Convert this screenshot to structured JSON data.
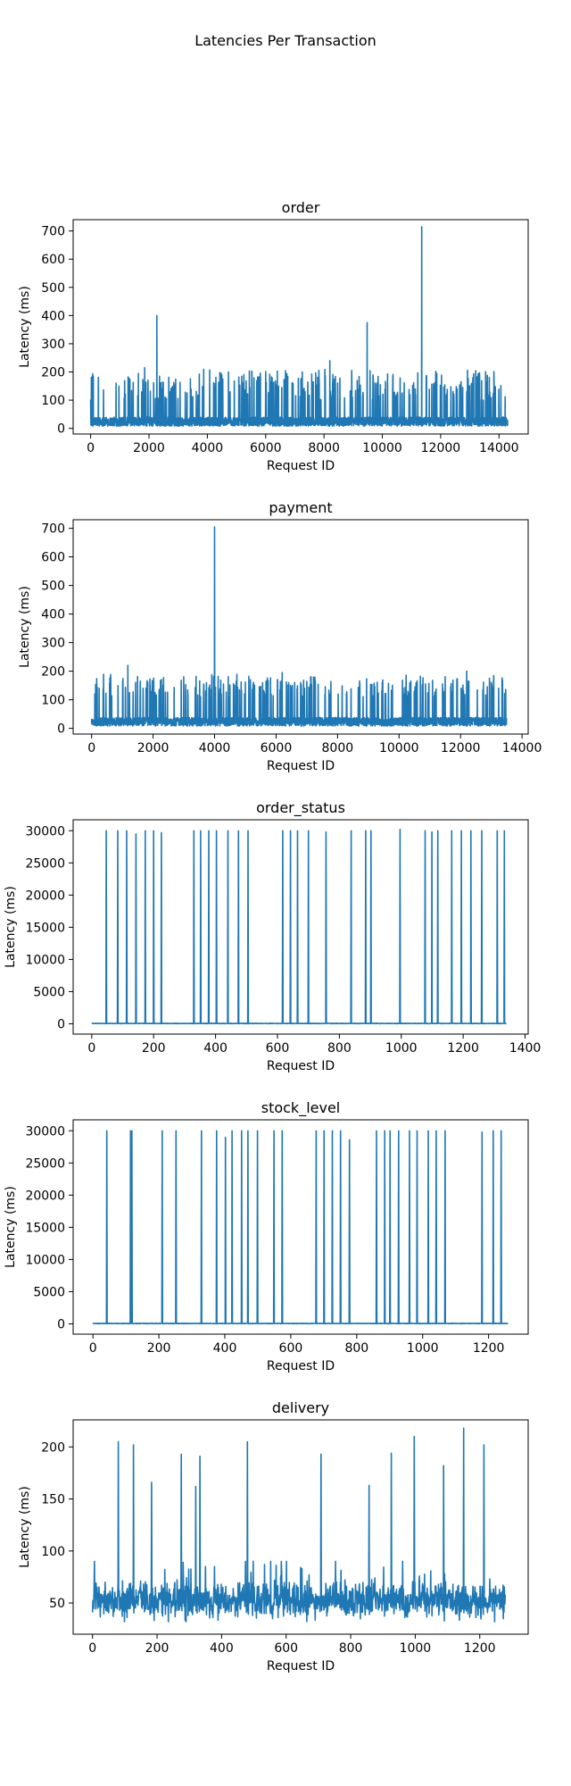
{
  "figure": {
    "suptitle": "Latencies Per Transaction"
  },
  "chart_data": [
    {
      "type": "line",
      "title": "order",
      "xlabel": "Request ID",
      "ylabel": "Latency (ms)",
      "xlim": [
        -600,
        15000
      ],
      "ylim": [
        -20,
        740
      ],
      "xticks": [
        0,
        2000,
        4000,
        6000,
        8000,
        10000,
        12000,
        14000
      ],
      "yticks": [
        0,
        100,
        200,
        300,
        400,
        500,
        600,
        700
      ],
      "grid": false,
      "color": "#1f77b4",
      "n_points": 14300,
      "baseline": [
        8,
        40
      ],
      "spike_range": [
        100,
        210
      ],
      "spike_count": 260,
      "peaks": [
        {
          "x": 2270,
          "y": 400
        },
        {
          "x": 9480,
          "y": 375
        },
        {
          "x": 11350,
          "y": 715
        },
        {
          "x": 8200,
          "y": 240
        },
        {
          "x": 1850,
          "y": 215
        },
        {
          "x": 13200,
          "y": 205
        }
      ]
    },
    {
      "type": "line",
      "title": "payment",
      "xlabel": "Request ID",
      "ylabel": "Latency (ms)",
      "xlim": [
        -600,
        14200
      ],
      "ylim": [
        -20,
        730
      ],
      "xticks": [
        0,
        2000,
        4000,
        6000,
        8000,
        10000,
        12000,
        14000
      ],
      "yticks": [
        0,
        100,
        200,
        300,
        400,
        500,
        600,
        700
      ],
      "grid": false,
      "color": "#1f77b4",
      "n_points": 13500,
      "baseline": [
        8,
        38
      ],
      "spike_range": [
        110,
        190
      ],
      "spike_count": 240,
      "peaks": [
        {
          "x": 4000,
          "y": 705
        },
        {
          "x": 1180,
          "y": 220
        },
        {
          "x": 12200,
          "y": 200
        },
        {
          "x": 6200,
          "y": 195
        }
      ]
    },
    {
      "type": "line",
      "title": "order_status",
      "xlabel": "Request ID",
      "ylabel": "Latency (ms)",
      "xlim": [
        -60,
        1410
      ],
      "ylim": [
        -1600,
        31700
      ],
      "xticks": [
        0,
        200,
        400,
        600,
        800,
        1000,
        1200,
        1400
      ],
      "yticks": [
        0,
        5000,
        10000,
        15000,
        20000,
        25000,
        30000
      ],
      "grid": false,
      "color": "#1f77b4",
      "n_points": 1340,
      "baseline": [
        20,
        90
      ],
      "spike_x": [
        47,
        84,
        113,
        143,
        173,
        200,
        225,
        330,
        352,
        378,
        403,
        440,
        474,
        505,
        617,
        642,
        665,
        700,
        757,
        838,
        885,
        902,
        996,
        1077,
        1099,
        1118,
        1163,
        1194,
        1225,
        1260,
        1310,
        1333
      ],
      "spike_y": [
        30000,
        30000,
        30000,
        29500,
        30000,
        30000,
        29700,
        30000,
        30000,
        30000,
        30000,
        30000,
        30000,
        30000,
        30000,
        30000,
        30000,
        30000,
        29800,
        30000,
        30000,
        30000,
        30200,
        30000,
        29800,
        30000,
        30000,
        30000,
        30000,
        30000,
        30000,
        30000
      ]
    },
    {
      "type": "line",
      "title": "stock_level",
      "xlabel": "Request ID",
      "ylabel": "Latency (ms)",
      "xlim": [
        -60,
        1320
      ],
      "ylim": [
        -1600,
        31700
      ],
      "xticks": [
        0,
        200,
        400,
        600,
        800,
        1000,
        1200
      ],
      "yticks": [
        0,
        5000,
        10000,
        15000,
        20000,
        25000,
        30000
      ],
      "grid": false,
      "color": "#1f77b4",
      "n_points": 1260,
      "baseline": [
        20,
        100
      ],
      "spike_x": [
        42,
        114,
        118,
        210,
        252,
        329,
        375,
        402,
        422,
        451,
        470,
        499,
        549,
        574,
        677,
        701,
        726,
        751,
        778,
        860,
        885,
        901,
        927,
        960,
        983,
        1017,
        1041,
        1068,
        1180,
        1214,
        1238
      ],
      "spike_y": [
        30000,
        30000,
        30000,
        30000,
        30000,
        30000,
        30000,
        29000,
        30000,
        30000,
        30000,
        30000,
        30000,
        30000,
        30000,
        30000,
        30000,
        30000,
        28600,
        30000,
        30000,
        30000,
        30000,
        30000,
        30000,
        30000,
        30000,
        30000,
        29800,
        30000,
        30000
      ]
    },
    {
      "type": "line",
      "title": "delivery",
      "xlabel": "Request ID",
      "ylabel": "Latency (ms)",
      "xlim": [
        -60,
        1350
      ],
      "ylim": [
        20,
        226
      ],
      "xticks": [
        0,
        200,
        400,
        600,
        800,
        1000,
        1200
      ],
      "yticks": [
        50,
        100,
        150,
        200
      ],
      "grid": false,
      "color": "#1f77b4",
      "n_points": 1280,
      "baseline": [
        32,
        90
      ],
      "peaks": [
        {
          "x": 80,
          "y": 205
        },
        {
          "x": 127,
          "y": 202
        },
        {
          "x": 183,
          "y": 166
        },
        {
          "x": 275,
          "y": 193
        },
        {
          "x": 320,
          "y": 162
        },
        {
          "x": 333,
          "y": 191
        },
        {
          "x": 480,
          "y": 205
        },
        {
          "x": 708,
          "y": 193
        },
        {
          "x": 857,
          "y": 163
        },
        {
          "x": 926,
          "y": 194
        },
        {
          "x": 997,
          "y": 210
        },
        {
          "x": 1088,
          "y": 182
        },
        {
          "x": 1150,
          "y": 218
        },
        {
          "x": 1213,
          "y": 202
        }
      ]
    }
  ]
}
